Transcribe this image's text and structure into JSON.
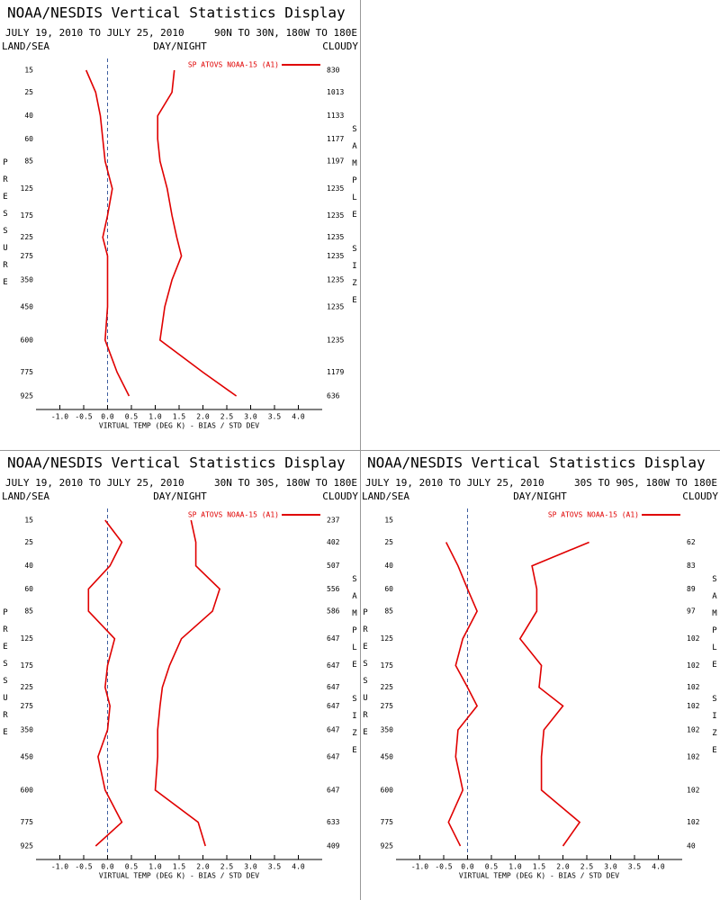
{
  "chart_data": [
    {
      "type": "line",
      "title": "NOAA/NESDIS Vertical Statistics Display",
      "date_range": "JULY 19, 2010 TO JULY 25, 2010",
      "region": "90N TO 30N, 180W TO 180E",
      "land_sea": "LAND/SEA",
      "day_night": "DAY/NIGHT",
      "cloudy": "CLOUDY",
      "ylabel": "PRESSURE",
      "y2label": "SAMPLE SIZE",
      "xlabel": "VIRTUAL TEMP (DEG K) - BIAS / STD DEV",
      "levels": [
        15,
        25,
        40,
        60,
        85,
        125,
        175,
        225,
        275,
        350,
        450,
        600,
        775,
        925
      ],
      "sample_size": [
        830,
        1013,
        1133,
        1177,
        1197,
        1235,
        1235,
        1235,
        1235,
        1235,
        1235,
        1235,
        1179,
        636
      ],
      "series": [
        {
          "name": "SP ATOVS NOAA-15 (A1)",
          "color": "#e00000",
          "bias": [
            -0.45,
            -0.25,
            -0.15,
            -0.1,
            -0.05,
            0.1,
            0.0,
            -0.1,
            0.0,
            0.0,
            0.0,
            -0.05,
            0.2,
            0.45
          ],
          "std_dev": [
            1.4,
            1.35,
            1.05,
            1.05,
            1.1,
            1.25,
            1.35,
            1.45,
            1.55,
            1.35,
            1.2,
            1.1,
            2.0,
            2.7
          ]
        }
      ],
      "xlim": [
        -1.5,
        4.5
      ],
      "xticks": [
        {
          "value": -1,
          "label": "-1.0"
        },
        -0.5,
        {
          "value": 0,
          "label": "0.0"
        },
        0.5,
        {
          "value": 1,
          "label": "1.0"
        },
        1.5,
        {
          "value": 2,
          "label": "2.0"
        },
        2.5,
        {
          "value": 3,
          "label": "3.0"
        },
        3.5,
        {
          "value": 4,
          "label": "4.0"
        }
      ]
    },
    {
      "type": "line",
      "title": "NOAA/NESDIS Vertical Statistics Display",
      "date_range": "JULY 19, 2010 TO JULY 25, 2010",
      "region": "30N TO 30S, 180W TO 180E",
      "land_sea": "LAND/SEA",
      "day_night": "DAY/NIGHT",
      "cloudy": "CLOUDY",
      "ylabel": "PRESSURE",
      "y2label": "SAMPLE SIZE",
      "xlabel": "VIRTUAL TEMP (DEG K) - BIAS / STD DEV",
      "levels": [
        15,
        25,
        40,
        60,
        85,
        125,
        175,
        225,
        275,
        350,
        450,
        600,
        775,
        925
      ],
      "sample_size": [
        237,
        402,
        507,
        556,
        586,
        647,
        647,
        647,
        647,
        647,
        647,
        647,
        633,
        409
      ],
      "series": [
        {
          "name": "SP ATOVS NOAA-15 (A1)",
          "color": "#e00000",
          "bias": [
            -0.05,
            0.3,
            0.05,
            -0.4,
            -0.4,
            0.15,
            0.0,
            -0.05,
            0.05,
            0.0,
            -0.2,
            -0.05,
            0.3,
            -0.25
          ],
          "std_dev": [
            1.75,
            1.85,
            1.85,
            2.35,
            2.2,
            1.55,
            1.3,
            1.15,
            1.1,
            1.05,
            1.05,
            1.0,
            1.9,
            2.05
          ]
        }
      ],
      "xlim": [
        -1.5,
        4.5
      ],
      "xticks": [
        {
          "value": -1,
          "label": "-1.0"
        },
        -0.5,
        {
          "value": 0,
          "label": "0.0"
        },
        0.5,
        {
          "value": 1,
          "label": "1.0"
        },
        1.5,
        {
          "value": 2,
          "label": "2.0"
        },
        2.5,
        {
          "value": 3,
          "label": "3.0"
        },
        3.5,
        {
          "value": 4,
          "label": "4.0"
        }
      ]
    },
    {
      "type": "line",
      "title": "NOAA/NESDIS Vertical Statistics Display",
      "date_range": "JULY 19, 2010 TO JULY 25, 2010",
      "region": "30S TO 90S, 180W TO 180E",
      "land_sea": "LAND/SEA",
      "day_night": "DAY/NIGHT",
      "cloudy": "CLOUDY",
      "ylabel": "PRESSURE",
      "y2label": "SAMPLE SIZE",
      "xlabel": "VIRTUAL TEMP (DEG K) - BIAS / STD DEV",
      "levels": [
        15,
        25,
        40,
        60,
        85,
        125,
        175,
        225,
        275,
        350,
        450,
        600,
        775,
        925
      ],
      "sample_size": [
        null,
        62,
        83,
        89,
        97,
        102,
        102,
        102,
        102,
        102,
        102,
        102,
        102,
        40
      ],
      "series": [
        {
          "name": "SP ATOVS NOAA-15 (A1)",
          "color": "#e00000",
          "bias": [
            null,
            -0.45,
            -0.2,
            0.0,
            0.2,
            -0.1,
            -0.25,
            0.0,
            0.2,
            -0.2,
            -0.25,
            -0.1,
            -0.4,
            -0.15
          ],
          "std_dev": [
            null,
            2.55,
            1.35,
            1.45,
            1.45,
            1.1,
            1.55,
            1.5,
            2.0,
            1.6,
            1.55,
            1.55,
            2.35,
            2.0
          ]
        }
      ],
      "xlim": [
        -1.5,
        4.5
      ],
      "xticks": [
        {
          "value": -1,
          "label": "-1.0"
        },
        -0.5,
        {
          "value": 0,
          "label": "0.0"
        },
        0.5,
        {
          "value": 1,
          "label": "1.0"
        },
        1.5,
        {
          "value": 2,
          "label": "2.0"
        },
        2.5,
        {
          "value": 3,
          "label": "3.0"
        },
        3.5,
        {
          "value": 4,
          "label": "4.0"
        }
      ]
    }
  ]
}
